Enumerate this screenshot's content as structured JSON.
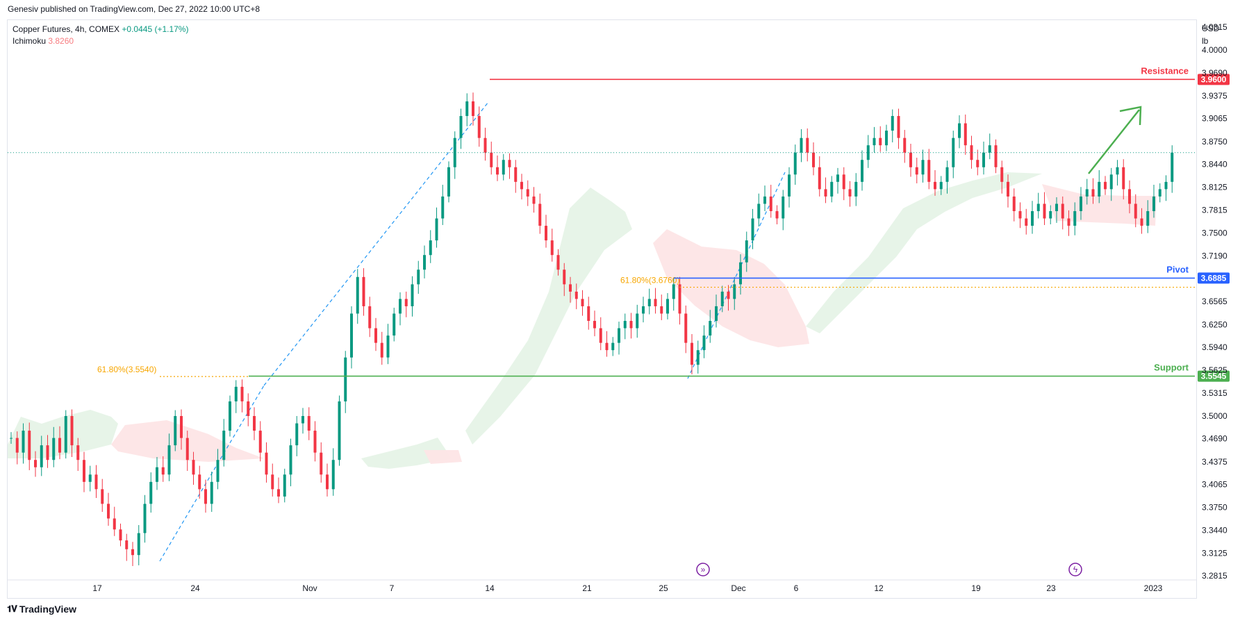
{
  "attribution": "Genesiv published on TradingView.com, Dec 27, 2022 10:00 UTC+8",
  "legend": {
    "symbol": "Copper Futures, 4h, COMEX",
    "change": "+0.0445 (+1.17%)",
    "indicator": "Ichimoku",
    "indicator_value": "3.8260"
  },
  "axis_units": {
    "currency": "USD",
    "unit": "lb"
  },
  "branding": "TradingView",
  "colors": {
    "up": "#089981",
    "down": "#f23645",
    "resistance": "#f23645",
    "pivot": "#2962ff",
    "support": "#4caf50",
    "fib": "#f7a600",
    "trend": "#2196f3",
    "cloud_bull": "#e6f3e7",
    "cloud_bear": "#fde5e6",
    "arrow": "#4caf50"
  },
  "chart_data": {
    "type": "candlestick",
    "y_axis": {
      "ticks": [
        4.0315,
        4.0,
        3.969,
        3.9375,
        3.9065,
        3.875,
        3.844,
        3.8125,
        3.7815,
        3.75,
        3.719,
        3.6565,
        3.625,
        3.594,
        3.5315,
        3.5,
        3.469,
        3.4375,
        3.4065,
        3.375,
        3.344,
        3.3125,
        3.2815
      ],
      "range": [
        3.276,
        4.041
      ]
    },
    "x_axis": {
      "ticks": [
        "17",
        "24",
        "Nov",
        "7",
        "14",
        "21",
        "25",
        "Dec",
        "6",
        "12",
        "19",
        "23",
        "2023"
      ]
    },
    "levels": [
      {
        "name": "Resistance",
        "value": 3.96,
        "label": "3.9600"
      },
      {
        "name": "Pivot",
        "value": 3.6885,
        "label": "3.6885"
      },
      {
        "name": "Support",
        "value": 3.5545,
        "label": "3.5545"
      }
    ],
    "fib_annotations": [
      {
        "label": "61.80%(3.5540)",
        "value": 3.554
      },
      {
        "label": "61.80%(3.6760)",
        "value": 3.676
      }
    ],
    "last_price_line": 3.86,
    "cross_label": "3.5625",
    "projection": "up",
    "candles": [
      3.47,
      3.45,
      3.48,
      3.44,
      3.43,
      3.46,
      3.44,
      3.47,
      3.45,
      3.5,
      3.46,
      3.44,
      3.41,
      3.42,
      3.4,
      3.38,
      3.36,
      3.345,
      3.33,
      3.318,
      3.31,
      3.34,
      3.38,
      3.41,
      3.43,
      3.42,
      3.46,
      3.5,
      3.47,
      3.44,
      3.42,
      3.4,
      3.38,
      3.41,
      3.44,
      3.48,
      3.52,
      3.54,
      3.52,
      3.5,
      3.48,
      3.45,
      3.42,
      3.4,
      3.39,
      3.42,
      3.46,
      3.49,
      3.5,
      3.48,
      3.45,
      3.42,
      3.4,
      3.44,
      3.52,
      3.58,
      3.64,
      3.69,
      3.65,
      3.62,
      3.6,
      3.58,
      3.61,
      3.64,
      3.66,
      3.65,
      3.68,
      3.7,
      3.72,
      3.74,
      3.77,
      3.8,
      3.84,
      3.88,
      3.91,
      3.93,
      3.91,
      3.88,
      3.86,
      3.84,
      3.83,
      3.85,
      3.84,
      3.82,
      3.81,
      3.8,
      3.79,
      3.76,
      3.74,
      3.72,
      3.7,
      3.68,
      3.67,
      3.66,
      3.65,
      3.63,
      3.62,
      3.6,
      3.59,
      3.6,
      3.62,
      3.63,
      3.62,
      3.64,
      3.65,
      3.66,
      3.65,
      3.64,
      3.66,
      3.68,
      3.64,
      3.6,
      3.57,
      3.59,
      3.61,
      3.63,
      3.65,
      3.67,
      3.66,
      3.68,
      3.71,
      3.74,
      3.77,
      3.79,
      3.8,
      3.78,
      3.77,
      3.8,
      3.83,
      3.86,
      3.88,
      3.86,
      3.84,
      3.81,
      3.8,
      3.82,
      3.83,
      3.81,
      3.8,
      3.82,
      3.85,
      3.87,
      3.88,
      3.87,
      3.89,
      3.91,
      3.88,
      3.86,
      3.84,
      3.83,
      3.85,
      3.82,
      3.81,
      3.82,
      3.84,
      3.88,
      3.9,
      3.87,
      3.85,
      3.84,
      3.86,
      3.87,
      3.84,
      3.82,
      3.8,
      3.78,
      3.77,
      3.76,
      3.78,
      3.79,
      3.77,
      3.78,
      3.79,
      3.77,
      3.76,
      3.78,
      3.8,
      3.81,
      3.8,
      3.82,
      3.81,
      3.83,
      3.84,
      3.81,
      3.79,
      3.77,
      3.76,
      3.78,
      3.8,
      3.81,
      3.82,
      3.86
    ]
  }
}
